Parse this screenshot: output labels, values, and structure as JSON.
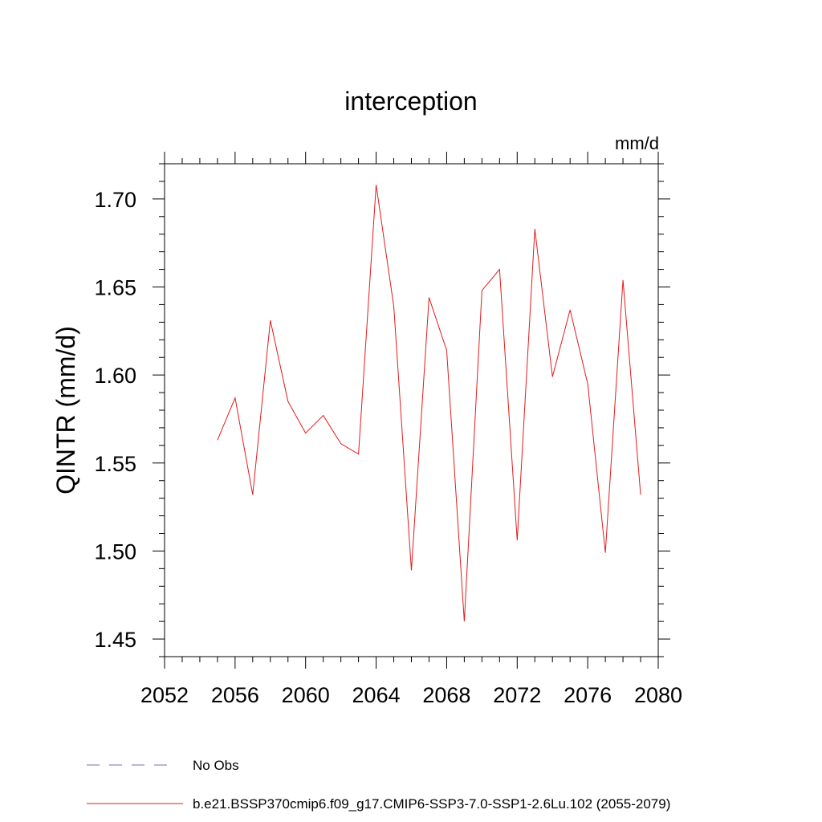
{
  "chart_data": {
    "type": "line",
    "title": "interception",
    "units_label": "mm/d",
    "ylabel": "QINTR  (mm/d)",
    "xlabel": "",
    "xlim": [
      2052,
      2080
    ],
    "ylim": [
      1.44,
      1.72
    ],
    "x_ticks": [
      "2052",
      "2056",
      "2060",
      "2064",
      "2068",
      "2072",
      "2076",
      "2080"
    ],
    "y_ticks": [
      "1.45",
      "1.50",
      "1.55",
      "1.60",
      "1.65",
      "1.70"
    ],
    "x": [
      2055,
      2056,
      2057,
      2058,
      2059,
      2060,
      2061,
      2062,
      2063,
      2064,
      2065,
      2066,
      2067,
      2068,
      2069,
      2070,
      2071,
      2072,
      2073,
      2074,
      2075,
      2076,
      2077,
      2078,
      2079
    ],
    "series": [
      {
        "name": "b.e21.BSSP370cmip6.f09_g17.CMIP6-SSP3-7.0-SSP1-2.6Lu.102 (2055-2079)",
        "color": "#e31a1c",
        "values": [
          1.563,
          1.587,
          1.532,
          1.631,
          1.585,
          1.567,
          1.577,
          1.561,
          1.555,
          1.708,
          1.639,
          1.489,
          1.644,
          1.614,
          1.46,
          1.648,
          1.66,
          1.506,
          1.683,
          1.599,
          1.637,
          1.595,
          1.499,
          1.654,
          1.532
        ]
      }
    ],
    "legend": [
      {
        "label": "No Obs",
        "style": "dashed",
        "color": "#7b68b5"
      },
      {
        "label": "b.e21.BSSP370cmip6.f09_g17.CMIP6-SSP3-7.0-SSP1-2.6Lu.102 (2055-2079)",
        "style": "solid",
        "color": "#e31a1c"
      }
    ],
    "legend_placement": "bottom",
    "grid": false
  }
}
